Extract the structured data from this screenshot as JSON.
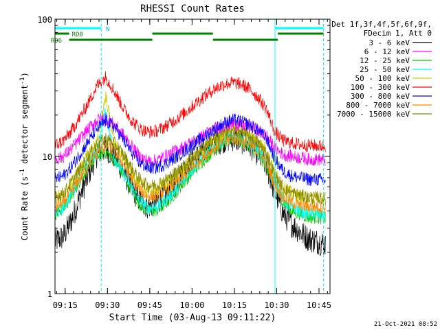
{
  "chart_data": {
    "type": "line",
    "title": "RHESSI Count Rates",
    "xlabel": "Start Time (03-Aug-13 09:11:22)",
    "ylabel": "Count Rate (s",
    "ylabel_sup1": "-1",
    "ylabel_mid": " detector segment",
    "ylabel_sup2": "-1",
    "ylabel_end": ")",
    "x_unit": "minutes after 09:11:22",
    "xlim": [
      0,
      97.5
    ],
    "ylim": [
      1,
      100
    ],
    "yscale": "log",
    "x_ticks": [
      {
        "t": 3.6,
        "label": "09:15"
      },
      {
        "t": 18.6,
        "label": "09:30"
      },
      {
        "t": 33.6,
        "label": "09:45"
      },
      {
        "t": 48.6,
        "label": "10:00"
      },
      {
        "t": 63.6,
        "label": "10:15"
      },
      {
        "t": 78.6,
        "label": "10:30"
      },
      {
        "t": 93.6,
        "label": "10:45"
      }
    ],
    "y_ticks": [
      {
        "v": 1,
        "label": "1"
      },
      {
        "v": 10,
        "label": "10"
      },
      {
        "v": 100,
        "label": "100"
      }
    ],
    "legend": {
      "position": "right",
      "header": [
        "Det 1f,3f,4f,5f,6f,9f,",
        "FDecim 1, Att 0"
      ],
      "entries": [
        {
          "label": "3 - 6 keV",
          "color": "#000000"
        },
        {
          "label": "6 - 12 keV",
          "color": "#ff00ff"
        },
        {
          "label": "12 - 25 keV",
          "color": "#00cc00"
        },
        {
          "label": "25 - 50 keV",
          "color": "#00ffff"
        },
        {
          "label": "50 - 100 keV",
          "color": "#cccc00"
        },
        {
          "label": "100 - 300 keV",
          "color": "#ff0000"
        },
        {
          "label": "300 - 800 keV",
          "color": "#0000ff"
        },
        {
          "label": "800 - 7000 keV",
          "color": "#ff8800"
        },
        {
          "label": "7000 - 15000 keV",
          "color": "#888800"
        }
      ]
    },
    "series": [
      {
        "name": "3 - 6 keV",
        "color": "#000000",
        "x": [
          0,
          3,
          6,
          9,
          12,
          15,
          18,
          21,
          24,
          27,
          30,
          33,
          36,
          39,
          42,
          45,
          48,
          51,
          54,
          57,
          60,
          63,
          66,
          69,
          72,
          75,
          78,
          81,
          84,
          87,
          90,
          93,
          96
        ],
        "y": [
          2.4,
          2.6,
          3.5,
          5.2,
          7.5,
          10.5,
          11.5,
          10.0,
          8.0,
          6.0,
          4.8,
          4.3,
          4.6,
          5.2,
          6.2,
          7.6,
          9.0,
          10.2,
          11.5,
          12.5,
          13.2,
          13.5,
          13.0,
          12.0,
          10.5,
          8.5,
          5.5,
          3.8,
          3.2,
          2.8,
          2.5,
          2.4,
          2.3
        ]
      },
      {
        "name": "6 - 12 keV",
        "color": "#ff00ff",
        "x": [
          0,
          3,
          6,
          9,
          12,
          15,
          18,
          21,
          24,
          27,
          30,
          33,
          36,
          39,
          42,
          45,
          48,
          51,
          54,
          57,
          60,
          63,
          66,
          69,
          72,
          75,
          78,
          81,
          84,
          87,
          90,
          93,
          96
        ],
        "y": [
          9.5,
          10.0,
          11.5,
          13.5,
          16.0,
          18.5,
          19.0,
          17.0,
          14.5,
          12.0,
          10.0,
          9.2,
          9.3,
          10.0,
          10.8,
          11.5,
          12.5,
          13.5,
          14.8,
          16.0,
          16.8,
          17.2,
          17.0,
          16.5,
          15.5,
          14.0,
          11.5,
          10.3,
          10.0,
          9.8,
          9.5,
          9.5,
          9.4
        ]
      },
      {
        "name": "12 - 25 keV",
        "color": "#00cc00",
        "x": [
          0,
          3,
          6,
          9,
          12,
          15,
          18,
          21,
          24,
          27,
          30,
          33,
          36,
          39,
          42,
          45,
          48,
          51,
          54,
          57,
          60,
          63,
          66,
          69,
          72,
          75,
          78,
          81,
          84,
          87,
          90,
          93,
          96
        ],
        "y": [
          3.8,
          4.2,
          5.2,
          6.8,
          8.5,
          10.2,
          10.8,
          9.5,
          7.5,
          5.8,
          4.5,
          4.0,
          4.0,
          4.5,
          5.2,
          6.2,
          7.4,
          8.6,
          10.0,
          11.5,
          12.5,
          13.5,
          13.0,
          12.0,
          10.5,
          8.5,
          6.2,
          4.6,
          4.0,
          3.8,
          3.6,
          3.6,
          3.5
        ]
      },
      {
        "name": "25 - 50 keV",
        "color": "#00ffff",
        "x": [
          0,
          3,
          6,
          9,
          12,
          15,
          18,
          21,
          24,
          27,
          30,
          33,
          36,
          39,
          42,
          45,
          48,
          51,
          54,
          57,
          60,
          63,
          66,
          69,
          72,
          75,
          78,
          81,
          84,
          87,
          90,
          93,
          96
        ],
        "y": [
          3.8,
          4.2,
          5.5,
          7.2,
          9.2,
          11.0,
          22.0,
          9.8,
          7.6,
          6.0,
          4.8,
          4.2,
          4.3,
          4.8,
          5.5,
          6.5,
          7.8,
          9.0,
          10.5,
          12.0,
          13.0,
          14.0,
          13.5,
          12.5,
          11.0,
          9.0,
          6.5,
          4.8,
          4.2,
          4.0,
          3.8,
          3.8,
          3.7
        ]
      },
      {
        "name": "50 - 100 keV",
        "color": "#cccc00",
        "x": [
          0,
          3,
          6,
          9,
          12,
          15,
          18,
          21,
          24,
          27,
          30,
          33,
          36,
          39,
          42,
          45,
          48,
          51,
          54,
          57,
          60,
          63,
          66,
          69,
          72,
          75,
          78,
          81,
          84,
          87,
          90,
          93,
          96
        ],
        "y": [
          5.0,
          5.3,
          6.5,
          8.2,
          10.5,
          13.0,
          28.0,
          12.5,
          10.0,
          7.8,
          6.3,
          5.7,
          5.8,
          6.3,
          7.0,
          8.0,
          9.2,
          10.5,
          12.0,
          13.5,
          15.0,
          16.0,
          15.5,
          14.5,
          13.0,
          11.0,
          7.5,
          6.0,
          5.4,
          5.1,
          5.0,
          5.0,
          4.9
        ]
      },
      {
        "name": "100 - 300 keV",
        "color": "#ff0000",
        "x": [
          0,
          3,
          6,
          9,
          12,
          15,
          18,
          21,
          24,
          27,
          30,
          33,
          36,
          39,
          42,
          45,
          48,
          51,
          54,
          57,
          60,
          63,
          66,
          69,
          72,
          75,
          78,
          81,
          84,
          87,
          90,
          93,
          96
        ],
        "y": [
          12.0,
          13.0,
          15.5,
          19.5,
          25.0,
          33.0,
          38.0,
          30.0,
          23.0,
          18.5,
          16.0,
          15.0,
          15.3,
          16.5,
          18.0,
          20.0,
          22.5,
          25.5,
          28.5,
          31.5,
          33.5,
          34.5,
          33.5,
          31.0,
          27.0,
          22.0,
          15.0,
          13.0,
          12.5,
          12.2,
          12.0,
          12.0,
          11.8
        ]
      },
      {
        "name": "300 - 800 keV",
        "color": "#0000ff",
        "x": [
          0,
          3,
          6,
          9,
          12,
          15,
          18,
          21,
          24,
          27,
          30,
          33,
          36,
          39,
          42,
          45,
          48,
          51,
          54,
          57,
          60,
          63,
          66,
          69,
          72,
          75,
          78,
          81,
          84,
          87,
          90,
          93,
          96
        ],
        "y": [
          6.8,
          7.2,
          8.5,
          10.5,
          13.0,
          16.0,
          18.0,
          16.5,
          13.5,
          10.8,
          9.0,
          8.2,
          8.3,
          8.8,
          9.6,
          10.6,
          11.8,
          13.0,
          14.5,
          16.0,
          17.5,
          18.5,
          18.0,
          17.0,
          15.5,
          13.5,
          9.5,
          7.8,
          7.2,
          7.0,
          6.8,
          6.8,
          6.7
        ]
      },
      {
        "name": "800 - 7000 keV",
        "color": "#ff8800",
        "x": [
          0,
          3,
          6,
          9,
          12,
          15,
          18,
          21,
          24,
          27,
          30,
          33,
          36,
          39,
          42,
          45,
          48,
          51,
          54,
          57,
          60,
          63,
          66,
          69,
          72,
          75,
          78,
          81,
          84,
          87,
          90,
          93,
          96
        ],
        "y": [
          4.3,
          4.6,
          5.6,
          7.0,
          8.8,
          10.8,
          12.0,
          11.0,
          9.0,
          7.0,
          5.7,
          5.1,
          5.2,
          5.6,
          6.2,
          7.0,
          8.0,
          9.2,
          10.5,
          11.8,
          12.8,
          13.5,
          13.0,
          12.2,
          10.8,
          9.0,
          6.2,
          5.0,
          4.6,
          4.4,
          4.3,
          4.3,
          4.2
        ]
      },
      {
        "name": "7000 - 15000 keV",
        "color": "#888800",
        "x": [
          0,
          3,
          6,
          9,
          12,
          15,
          18,
          21,
          24,
          27,
          30,
          33,
          36,
          39,
          42,
          45,
          48,
          51,
          54,
          57,
          60,
          63,
          66,
          69,
          72,
          75,
          78,
          81,
          84,
          87,
          90,
          93,
          96
        ],
        "y": [
          5.0,
          5.4,
          6.5,
          8.2,
          10.2,
          12.5,
          13.5,
          12.5,
          10.5,
          8.3,
          6.8,
          6.1,
          6.2,
          6.7,
          7.4,
          8.3,
          9.4,
          10.7,
          12.2,
          13.7,
          14.8,
          15.6,
          15.1,
          14.2,
          12.6,
          10.6,
          7.2,
          5.9,
          5.4,
          5.2,
          5.0,
          5.0,
          4.9
        ]
      }
    ],
    "markers": {
      "vlines": [
        {
          "t": 0,
          "style": "solid"
        },
        {
          "t": 16.4,
          "style": "dashed"
        },
        {
          "t": 78.0,
          "style": "solid"
        },
        {
          "t": 95.2,
          "style": "dashed"
        }
      ],
      "bars": [
        {
          "name": "night",
          "color": "#00ffff",
          "level": 1,
          "segments": [
            [
              0,
              16.4
            ],
            [
              78.0,
              95.2
            ]
          ]
        },
        {
          "name": "RD0",
          "color": "#008000",
          "level": 2,
          "segments": [
            [
              0,
              5.0
            ],
            [
              34.5,
              56.0
            ],
            [
              79.0,
              95.2
            ]
          ]
        },
        {
          "name": "RD6",
          "color": "#008000",
          "level": 3,
          "segments": [
            [
              5.0,
              34.5
            ],
            [
              56.0,
              79.0
            ]
          ]
        }
      ],
      "labels": [
        {
          "text": "N",
          "t": 18.0,
          "level": 1
        },
        {
          "text": "RD0",
          "t": 6.0,
          "level": 2
        },
        {
          "text": "RD6",
          "t": -1.5,
          "level": 3
        }
      ]
    },
    "grid": false,
    "footer_timestamp": "21-Oct-2021 08:52"
  }
}
